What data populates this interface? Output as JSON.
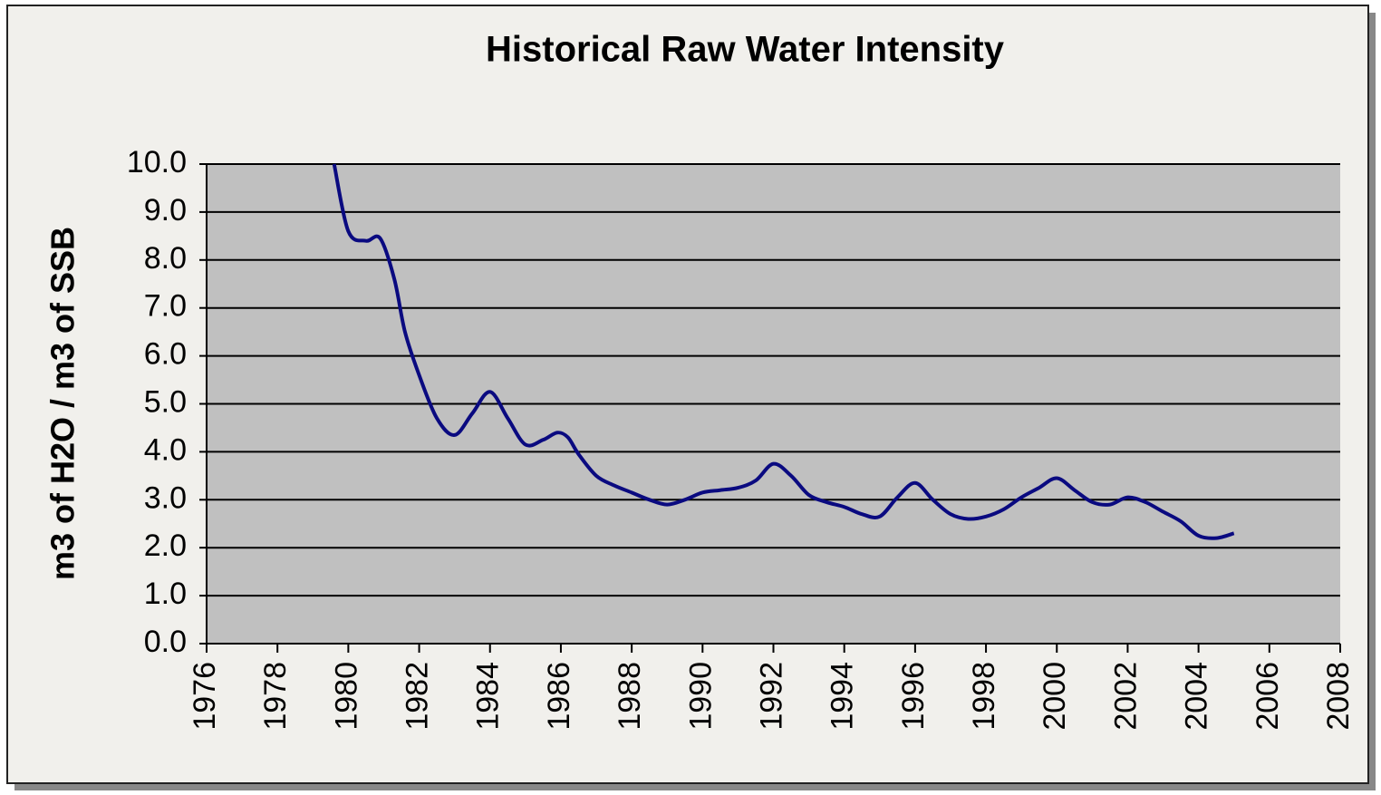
{
  "chart_data": {
    "type": "line",
    "title": "Historical Raw Water Intensity",
    "y_label": "m3 of H2O / m3 of SSB",
    "x": [
      1979.6,
      1980.0,
      1980.5,
      1980.9,
      1981.3,
      1981.6,
      1982.0,
      1982.5,
      1983.0,
      1983.5,
      1984.0,
      1984.5,
      1985.0,
      1985.5,
      1985.9,
      1986.2,
      1986.5,
      1987.0,
      1987.5,
      1988.0,
      1988.5,
      1989.0,
      1989.5,
      1990.0,
      1990.5,
      1991.0,
      1991.5,
      1992.0,
      1992.5,
      1993.0,
      1993.5,
      1994.0,
      1994.5,
      1995.0,
      1995.5,
      1996.0,
      1996.5,
      1997.0,
      1997.5,
      1998.0,
      1998.5,
      1999.0,
      1999.5,
      2000.0,
      2000.5,
      2001.0,
      2001.5,
      2002.0,
      2002.5,
      2003.0,
      2003.5,
      2004.0,
      2004.5,
      2005.0
    ],
    "series": [
      {
        "name": "Raw Water Intensity",
        "color": "#0a0a80",
        "values": [
          10.0,
          8.6,
          8.4,
          8.45,
          7.6,
          6.5,
          5.6,
          4.7,
          4.35,
          4.8,
          5.25,
          4.7,
          4.15,
          4.25,
          4.4,
          4.3,
          3.95,
          3.5,
          3.3,
          3.15,
          3.0,
          2.9,
          3.0,
          3.15,
          3.2,
          3.25,
          3.4,
          3.75,
          3.5,
          3.1,
          2.95,
          2.85,
          2.7,
          2.65,
          3.05,
          3.35,
          3.0,
          2.7,
          2.6,
          2.65,
          2.8,
          3.05,
          3.25,
          3.45,
          3.2,
          2.95,
          2.9,
          3.05,
          2.95,
          2.75,
          2.55,
          2.25,
          2.2,
          2.3
        ]
      }
    ],
    "xlim": [
      1976,
      2008
    ],
    "xticks": [
      1976,
      1978,
      1980,
      1982,
      1984,
      1986,
      1988,
      1990,
      1992,
      1994,
      1996,
      1998,
      2000,
      2002,
      2004,
      2006,
      2008
    ],
    "ylim": [
      0,
      10
    ],
    "yticks": [
      {
        "value": 0,
        "label": "0.0"
      },
      {
        "value": 1,
        "label": "1.0"
      },
      {
        "value": 2,
        "label": "2.0"
      },
      {
        "value": 3,
        "label": "3.0"
      },
      {
        "value": 4,
        "label": "4.0"
      },
      {
        "value": 5,
        "label": "5.0"
      },
      {
        "value": 6,
        "label": "6.0"
      },
      {
        "value": 7,
        "label": "7.0"
      },
      {
        "value": 8,
        "label": "8.0"
      },
      {
        "value": 9,
        "label": "9.0"
      },
      {
        "value": 10,
        "label": "10.0"
      }
    ],
    "grid": true
  }
}
